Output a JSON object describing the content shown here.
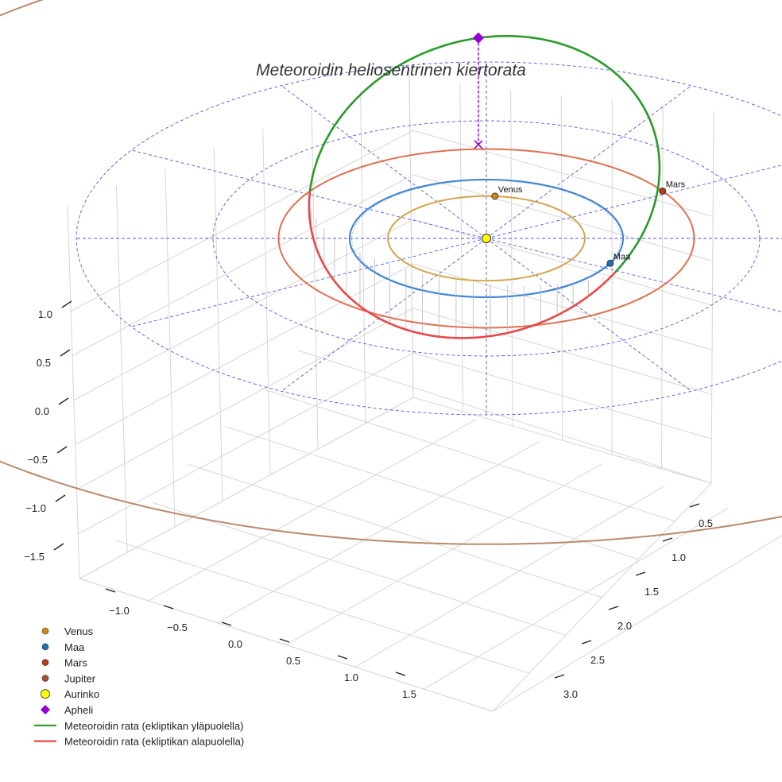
{
  "chart_data": {
    "type": "3d-line",
    "title": "Meteoroidin heliosentrinen kiertorata",
    "axes": {
      "x_ticks": [
        "−1.0",
        "−0.5",
        "0.0",
        "0.5",
        "1.0",
        "1.5"
      ],
      "y_ticks": [
        "0.5",
        "1.0",
        "1.5",
        "2.0",
        "2.5",
        "3.0"
      ],
      "z_ticks": [
        "1.0",
        "0.5",
        "0.0",
        "−0.5",
        "−1.0",
        "−1.5"
      ],
      "z_range": [
        -1.7,
        1.3
      ]
    },
    "ecliptic_grid_radii_au": [
      1,
      2,
      3
    ],
    "sun": {
      "label": "Aurinko",
      "x": 0,
      "y": 0,
      "z": 0,
      "color": "#ffff00"
    },
    "planets": [
      {
        "name": "Venus",
        "orbit_radius_au": 0.72,
        "color": "#d4a44c",
        "marker_color": "#d2871c",
        "angle_deg": 85,
        "show_label": true
      },
      {
        "name": "Maa",
        "orbit_radius_au": 1.0,
        "color": "#3a7fd0",
        "marker_color": "#1f6fb4",
        "angle_deg": -25,
        "show_label": true
      },
      {
        "name": "Mars",
        "orbit_radius_au": 1.52,
        "color": "#e07050",
        "marker_color": "#c0391b",
        "angle_deg": 32,
        "show_label": true
      },
      {
        "name": "Jupiter",
        "orbit_radius_au": 5.2,
        "color": "#b98a6c",
        "marker_color": "#a0522d",
        "angle_deg": null,
        "show_label": false
      }
    ],
    "meteoroid_orbit": {
      "semi_major_axis_au": 1.45,
      "perihelion_au": 0.95,
      "aphelion_au": 1.95,
      "inclination_deg": 40,
      "segments": [
        {
          "name": "Meteoroidin rata (ekliptikan yläpuolella)",
          "color": "#2a9a2a"
        },
        {
          "name": "Meteoroidin rata (ekliptikan alapuolella)",
          "color": "#e84848"
        }
      ]
    },
    "aphelion": {
      "label": "Apheli",
      "color": "#9400d3"
    },
    "legend": [
      {
        "label": "Venus",
        "kind": "dot",
        "color": "#d2871c"
      },
      {
        "label": "Maa",
        "kind": "dot",
        "color": "#1f6fb4"
      },
      {
        "label": "Mars",
        "kind": "dot",
        "color": "#c0391b"
      },
      {
        "label": "Jupiter",
        "kind": "dot",
        "color": "#a0522d"
      },
      {
        "label": "Aurinko",
        "kind": "sun",
        "color": "#ffff00"
      },
      {
        "label": "Apheli",
        "kind": "diamond",
        "color": "#9400d3"
      },
      {
        "label": "Meteoroidin rata (ekliptikan yläpuolella)",
        "kind": "line",
        "color": "#2a9a2a"
      },
      {
        "label": "Meteoroidin rata (ekliptikan alapuolella)",
        "kind": "line",
        "color": "#e84848"
      }
    ]
  }
}
